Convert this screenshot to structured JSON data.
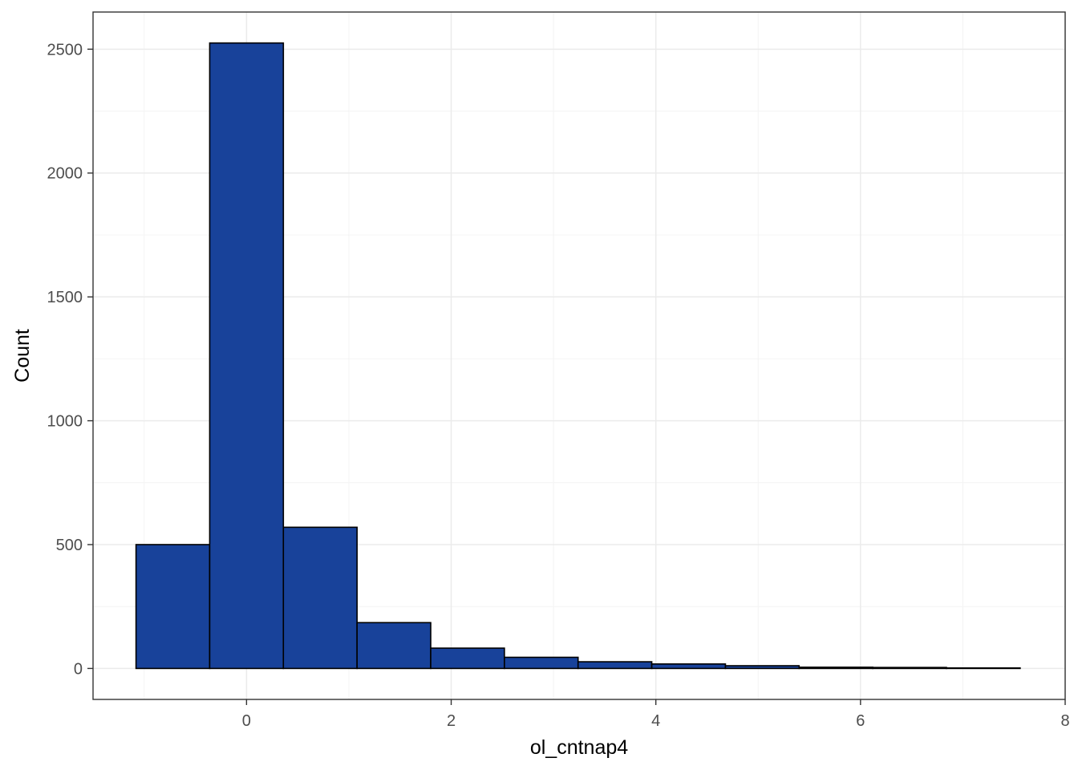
{
  "chart_data": {
    "type": "bar",
    "title": "",
    "xlabel": "ol_cntnap4",
    "ylabel": "Count",
    "xlim": [
      -1.5,
      8
    ],
    "ylim": [
      -125,
      2650
    ],
    "x_ticks": [
      0,
      2,
      4,
      6,
      8
    ],
    "y_ticks": [
      0,
      500,
      1000,
      1500,
      2000,
      2500
    ],
    "grid": true,
    "bins": [
      {
        "x0": -1.08,
        "x1": -0.36,
        "count": 500
      },
      {
        "x0": -0.36,
        "x1": 0.36,
        "count": 2525
      },
      {
        "x0": 0.36,
        "x1": 1.08,
        "count": 570
      },
      {
        "x0": 1.08,
        "x1": 1.8,
        "count": 185
      },
      {
        "x0": 1.8,
        "x1": 2.52,
        "count": 82
      },
      {
        "x0": 2.52,
        "x1": 3.24,
        "count": 45
      },
      {
        "x0": 3.24,
        "x1": 3.96,
        "count": 27
      },
      {
        "x0": 3.96,
        "x1": 4.68,
        "count": 18
      },
      {
        "x0": 4.68,
        "x1": 5.4,
        "count": 11
      },
      {
        "x0": 5.4,
        "x1": 6.12,
        "count": 5
      },
      {
        "x0": 6.12,
        "x1": 6.84,
        "count": 4
      },
      {
        "x0": 6.84,
        "x1": 7.56,
        "count": 2
      }
    ],
    "colors": {
      "bar_fill": "#18429A",
      "bar_stroke": "#000000",
      "grid_major": "#EBEBEB",
      "grid_minor": "#F4F4F4",
      "panel_border": "#333333"
    }
  }
}
